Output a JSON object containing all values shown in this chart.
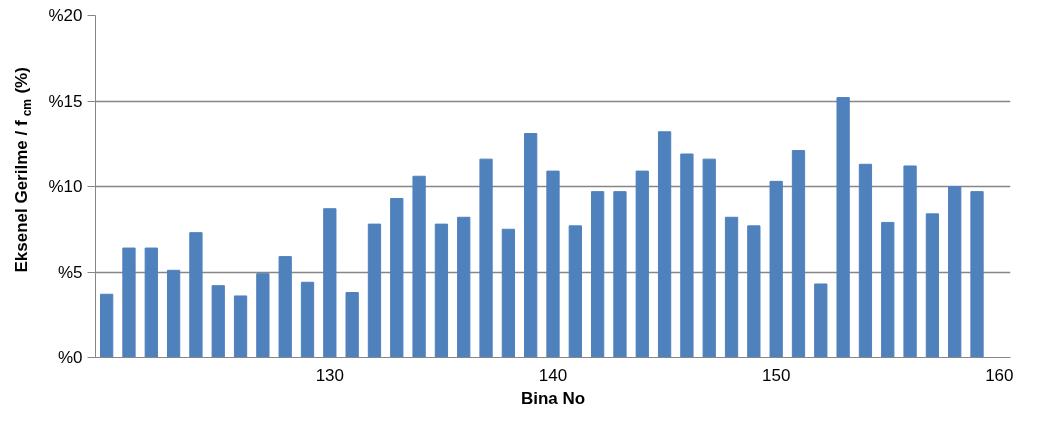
{
  "chart_data": {
    "type": "bar",
    "xlabel": "Bina No",
    "ylabel": "Eksenel Gerilme / f$_{cm}$ (%)",
    "x": [
      120,
      121,
      122,
      123,
      124,
      125,
      126,
      127,
      128,
      129,
      130,
      131,
      132,
      133,
      134,
      135,
      136,
      137,
      138,
      139,
      140,
      141,
      142,
      143,
      144,
      145,
      146,
      147,
      148,
      149,
      150,
      151,
      152,
      153,
      154,
      155,
      156,
      157,
      158,
      159
    ],
    "values": [
      3.7,
      6.4,
      6.4,
      5.1,
      7.3,
      4.2,
      3.6,
      4.9,
      5.9,
      4.4,
      8.7,
      3.8,
      7.8,
      9.3,
      10.6,
      7.8,
      8.2,
      11.6,
      7.5,
      13.1,
      10.9,
      7.7,
      9.7,
      9.7,
      10.9,
      13.2,
      11.9,
      11.6,
      8.2,
      7.7,
      10.3,
      12.1,
      4.3,
      15.2,
      11.3,
      7.9,
      11.2,
      8.4,
      10.0,
      9.7
    ],
    "color": "#4f81bd",
    "xlim": [
      119.5,
      160.5
    ],
    "xticks": [
      130,
      140,
      150,
      160
    ],
    "ylim": [
      0,
      20
    ],
    "yticks": [
      {
        "value": 0,
        "label": "%0"
      },
      {
        "value": 5,
        "label": "%5"
      },
      {
        "value": 10,
        "label": "%10"
      },
      {
        "value": 15,
        "label": "%15"
      },
      {
        "value": 20,
        "label": "%20"
      }
    ],
    "grid": "y"
  }
}
